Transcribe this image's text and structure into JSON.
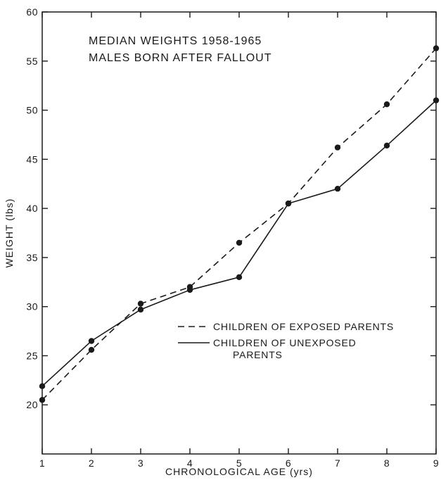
{
  "chart_data": {
    "type": "line",
    "title": [
      "MEDIAN WEIGHTS 1958-1965",
      "MALES BORN AFTER FALLOUT"
    ],
    "xlabel": "CHRONOLOGICAL AGE (yrs)",
    "ylabel": "WEIGHT (lbs)",
    "x": [
      1,
      2,
      3,
      4,
      5,
      6,
      7,
      8,
      9
    ],
    "xlim": [
      1,
      9
    ],
    "ylim": [
      15,
      60
    ],
    "xticks": [
      1,
      2,
      3,
      4,
      5,
      6,
      7,
      8,
      9
    ],
    "yticks": [
      20,
      25,
      30,
      35,
      40,
      45,
      50,
      55,
      60
    ],
    "grid": false,
    "legend_position": "lower-right",
    "series": [
      {
        "name": [
          "CHILDREN OF EXPOSED PARENTS"
        ],
        "style": "dashed",
        "color": "#1a1a1a",
        "values": [
          20.5,
          25.6,
          30.3,
          32.0,
          36.5,
          40.5,
          46.2,
          50.6,
          56.3
        ]
      },
      {
        "name": [
          "CHILDREN OF UNEXPOSED",
          "PARENTS"
        ],
        "style": "solid",
        "color": "#1a1a1a",
        "values": [
          21.9,
          26.5,
          29.7,
          31.7,
          33.0,
          40.5,
          42.0,
          46.4,
          51.0
        ]
      }
    ]
  }
}
